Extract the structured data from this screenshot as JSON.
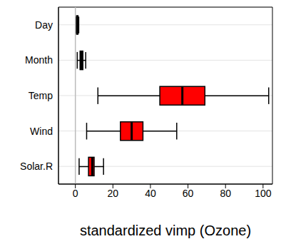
{
  "chart_data": {
    "type": "boxplot",
    "orientation": "horizontal",
    "xlabel": "standardized vimp (Ozone)",
    "categories": [
      "Day",
      "Month",
      "Temp",
      "Wind",
      "Solar.R"
    ],
    "min": [
      0.3,
      1,
      12,
      6,
      2
    ],
    "q1": [
      0.6,
      2.5,
      45,
      24,
      7
    ],
    "median": [
      1.0,
      3,
      57,
      30,
      9
    ],
    "q3": [
      1.4,
      4,
      69,
      36,
      10
    ],
    "max": [
      1.8,
      5.5,
      103,
      54,
      15
    ],
    "colors": [
      "#000000",
      "#000000",
      "#ff0000",
      "#ff0000",
      "#ff0000"
    ],
    "xlim": [
      -9,
      105
    ],
    "xticks": [
      0,
      20,
      40,
      60,
      80,
      100
    ],
    "vline": 0,
    "grid": true
  }
}
